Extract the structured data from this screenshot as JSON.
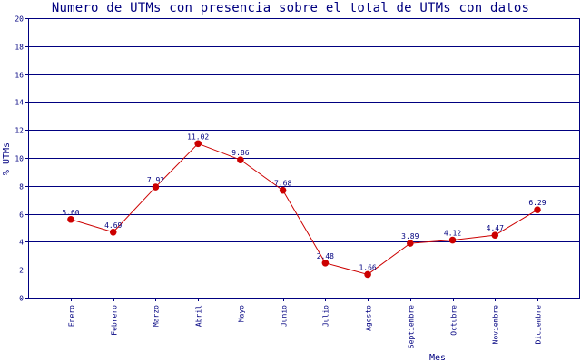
{
  "chart_data": {
    "type": "line",
    "title": "Numero de UTMs con presencia sobre el total de UTMs con datos",
    "xlabel": "Mes",
    "ylabel": "% UTMs",
    "categories": [
      "Enero",
      "Febrero",
      "Marzo",
      "Abril",
      "Mayo",
      "Junio",
      "Julio",
      "Agosto",
      "Septiembre",
      "Octubre",
      "Noviembre",
      "Diciembre"
    ],
    "values": [
      5.6,
      4.69,
      7.92,
      11.02,
      9.86,
      7.68,
      2.48,
      1.66,
      3.89,
      4.12,
      4.47,
      6.29
    ],
    "value_labels": [
      "5.60",
      "4.69",
      "7.92",
      "11.02",
      "9.86",
      "7.68",
      "2.48",
      "1.66",
      "3.89",
      "4.12",
      "4.47",
      "6.29"
    ],
    "ylim": [
      0,
      20
    ],
    "yticks": [
      "0",
      "2",
      "4",
      "6",
      "8",
      "10",
      "12",
      "14",
      "16",
      "18",
      "20"
    ],
    "grid": true,
    "colors": {
      "line": "#cc0000",
      "marker": "#cc0000",
      "grid": "#000080",
      "text": "#000080"
    }
  }
}
